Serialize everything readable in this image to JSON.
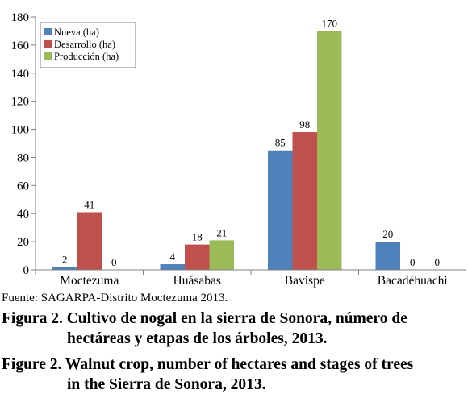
{
  "chart_data": {
    "type": "bar",
    "categories": [
      "Moctezuma",
      "Huásabas",
      "Bavispe",
      "Bacadéhuachi"
    ],
    "series": [
      {
        "name": "Nueva (ha)",
        "color": "#4f81bd",
        "values": [
          2,
          4,
          85,
          20
        ]
      },
      {
        "name": "Desarrollo (ha)",
        "color": "#c0504d",
        "values": [
          41,
          18,
          98,
          0
        ]
      },
      {
        "name": "Producción (ha)",
        "color": "#9bbb59",
        "values": [
          0,
          21,
          170,
          0
        ]
      }
    ],
    "ylim": [
      0,
      180
    ],
    "yticks": [
      0,
      20,
      40,
      60,
      80,
      100,
      120,
      140,
      160,
      180
    ],
    "legend_position": "top-left",
    "grid": false,
    "data_labels": true
  },
  "source": "Fuente: SAGARPA-Distrito Moctezuma 2013.",
  "caption": {
    "es_line1": "Figura 2. Cultivo de nogal en la sierra de Sonora, número de",
    "es_line2": "hectáreas y etapas de los árboles, 2013.",
    "en_line1": "Figure 2. Walnut crop, number of hectares and stages of trees",
    "en_line2": "in the Sierra de Sonora, 2013."
  }
}
